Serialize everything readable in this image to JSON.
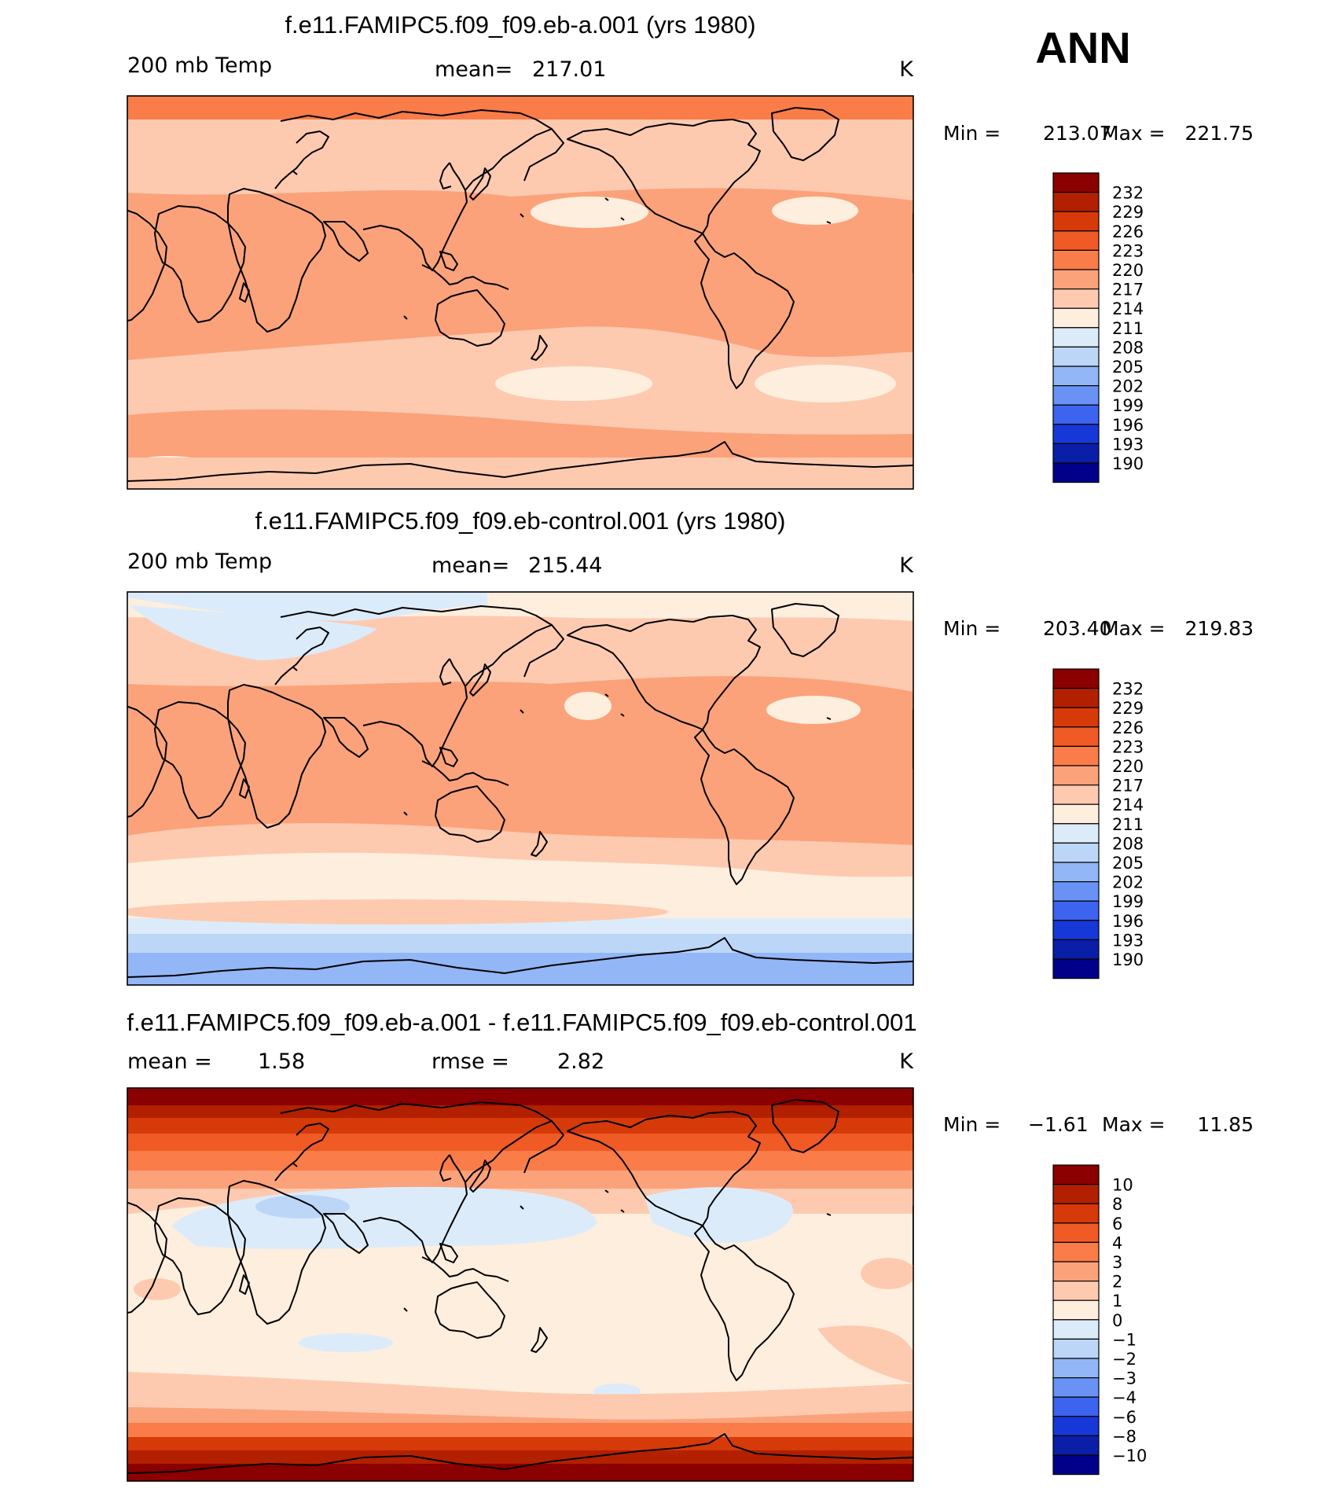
{
  "season": "ANN",
  "chart_data": [
    {
      "type": "heatmap",
      "title": "f.e11.FAMIPC5.f09_f09.eb-a.001 (yrs 1980)",
      "variable": "200 mb Temp",
      "units": "K",
      "stat_label": "mean=",
      "stat_value": "217.01",
      "min_value": "213.07",
      "max_value": "221.75",
      "colorbar_levels": [
        "232",
        "229",
        "226",
        "223",
        "220",
        "217",
        "214",
        "211",
        "208",
        "205",
        "202",
        "199",
        "196",
        "193",
        "190"
      ],
      "colorbar_colors": [
        "#8b0000",
        "#b22000",
        "#d63a08",
        "#f05a24",
        "#fa7c48",
        "#fba27a",
        "#fdcab0",
        "#feeede",
        "#dcebfa",
        "#bcd6f8",
        "#93b6f7",
        "#6a92f5",
        "#3c64ee",
        "#1638d8",
        "#0a1fa8",
        "#00008b"
      ]
    },
    {
      "type": "heatmap",
      "title": "f.e11.FAMIPC5.f09_f09.eb-control.001 (yrs 1980)",
      "variable": "200 mb Temp",
      "units": "K",
      "stat_label": "mean=",
      "stat_value": "215.44",
      "min_value": "203.40",
      "max_value": "219.83",
      "colorbar_levels": [
        "232",
        "229",
        "226",
        "223",
        "220",
        "217",
        "214",
        "211",
        "208",
        "205",
        "202",
        "199",
        "196",
        "193",
        "190"
      ],
      "colorbar_colors": [
        "#8b0000",
        "#b22000",
        "#d63a08",
        "#f05a24",
        "#fa7c48",
        "#fba27a",
        "#fdcab0",
        "#feeede",
        "#dcebfa",
        "#bcd6f8",
        "#93b6f7",
        "#6a92f5",
        "#3c64ee",
        "#1638d8",
        "#0a1fa8",
        "#00008b"
      ]
    },
    {
      "type": "heatmap",
      "title": "f.e11.FAMIPC5.f09_f09.eb-a.001 - f.e11.FAMIPC5.f09_f09.eb-control.001",
      "units": "K",
      "mean_label": "mean =",
      "mean_value": "1.58",
      "rmse_label": "rmse =",
      "rmse_value": "2.82",
      "min_value": "−1.61",
      "max_value": "11.85",
      "colorbar_levels": [
        "10",
        "8",
        "6",
        "4",
        "3",
        "2",
        "1",
        "0",
        "−1",
        "−2",
        "−3",
        "−4",
        "−6",
        "−8",
        "−10"
      ],
      "colorbar_colors": [
        "#8b0000",
        "#b22000",
        "#d63a08",
        "#f05a24",
        "#fa7c48",
        "#fba27a",
        "#fdcab0",
        "#feeede",
        "#dcebfa",
        "#bcd6f8",
        "#93b6f7",
        "#6a92f5",
        "#3c64ee",
        "#1638d8",
        "#0a1fa8",
        "#00008b"
      ]
    }
  ],
  "labels": {
    "min": "Min  =",
    "max": "Max  ="
  }
}
